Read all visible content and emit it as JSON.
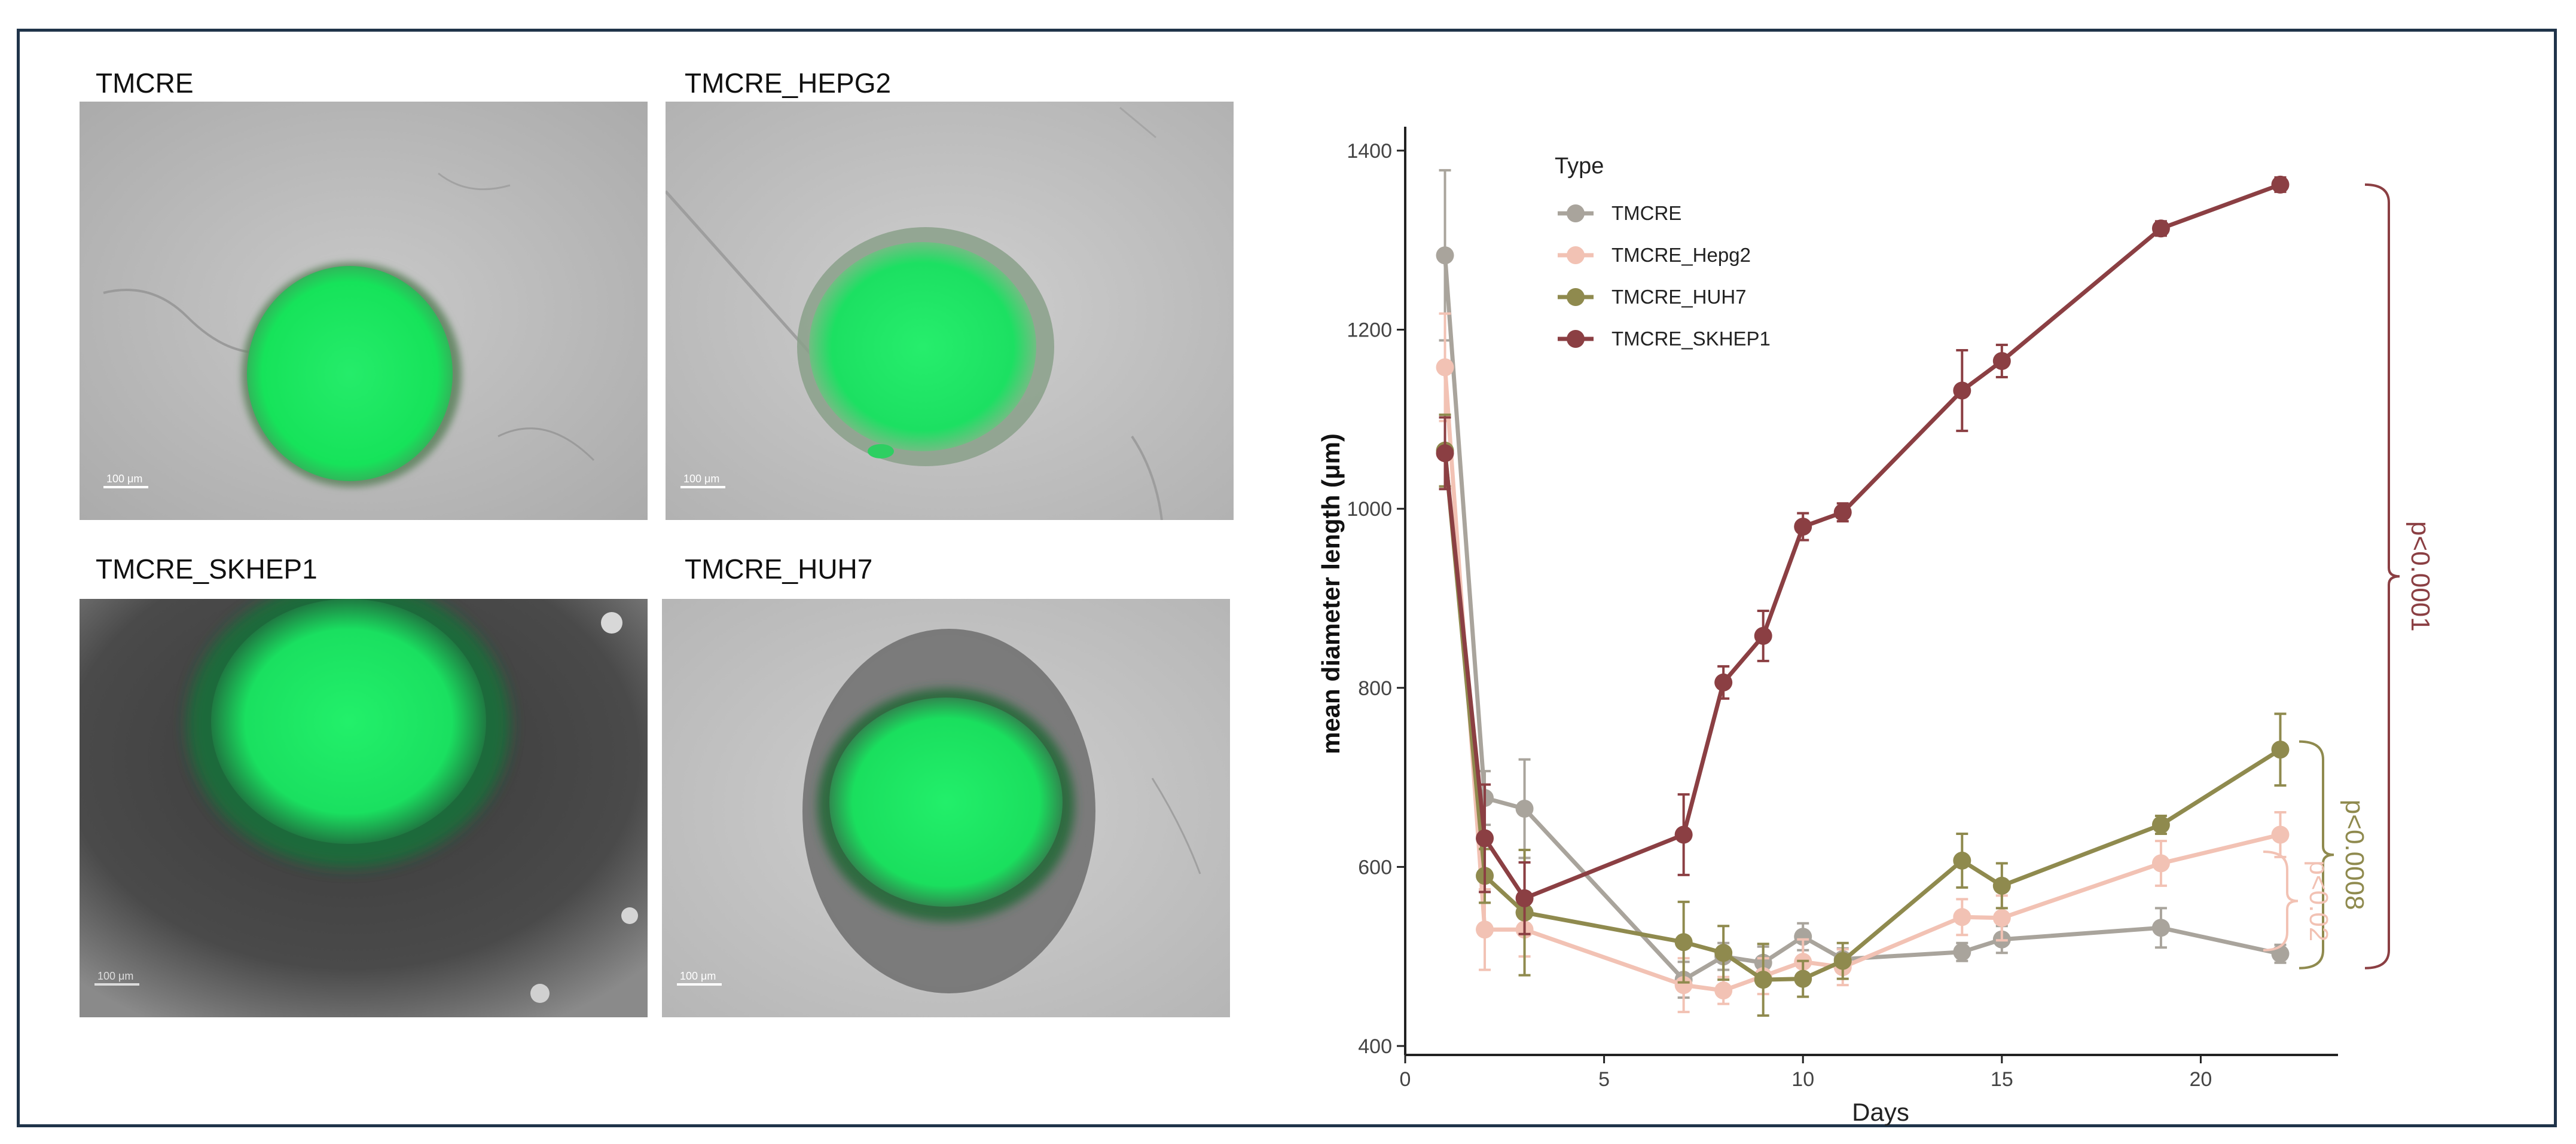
{
  "figure": {
    "panels": [
      {
        "label": "TMCRE",
        "scale_bar": "100 μm"
      },
      {
        "label": "TMCRE_HEPG2",
        "scale_bar": "100 μm"
      },
      {
        "label": "TMCRE_SKHEP1",
        "scale_bar": "100 μm"
      },
      {
        "label": "TMCRE_HUH7",
        "scale_bar": "100 μm"
      }
    ]
  },
  "chart_data": {
    "type": "line",
    "title": "",
    "xlabel": "Days",
    "ylabel": "mean diameter length (μm)",
    "xlim": [
      0,
      23
    ],
    "ylim": [
      390,
      1420
    ],
    "xticks": [
      0,
      5,
      10,
      15,
      20
    ],
    "yticks": [
      400,
      600,
      800,
      1000,
      1200,
      1400
    ],
    "grid": false,
    "legend": {
      "title": "Type",
      "position": "top-left-inside"
    },
    "series": [
      {
        "name": "TMCRE",
        "color": "#a9a49c",
        "x": [
          1,
          2,
          3,
          7,
          8,
          9,
          10,
          11,
          14,
          15,
          19,
          22
        ],
        "y": [
          1283,
          677,
          665,
          474,
          500,
          493,
          522,
          497,
          505,
          519,
          532,
          503
        ],
        "err": [
          95,
          30,
          55,
          20,
          15,
          18,
          15,
          12,
          10,
          15,
          22,
          10
        ]
      },
      {
        "name": "TMCRE_Hepg2",
        "color": "#f2c2b4",
        "x": [
          1,
          2,
          3,
          7,
          8,
          9,
          10,
          11,
          14,
          15,
          19,
          22
        ],
        "y": [
          1158,
          530,
          530,
          468,
          462,
          478,
          494,
          488,
          544,
          543,
          604,
          636
        ],
        "err": [
          60,
          45,
          30,
          30,
          15,
          20,
          25,
          20,
          20,
          25,
          25,
          25
        ]
      },
      {
        "name": "TMCRE_HUH7",
        "color": "#8f8a4e",
        "x": [
          1,
          2,
          3,
          7,
          8,
          9,
          10,
          11,
          14,
          15,
          19,
          22
        ],
        "y": [
          1065,
          590,
          549,
          516,
          504,
          474,
          475,
          495,
          607,
          579,
          647,
          731
        ],
        "err": [
          40,
          30,
          70,
          45,
          30,
          40,
          20,
          20,
          30,
          25,
          10,
          40
        ]
      },
      {
        "name": "TMCRE_SKHEP1",
        "color": "#8b3f43",
        "x": [
          1,
          2,
          3,
          7,
          8,
          9,
          10,
          11,
          14,
          15,
          19,
          22
        ],
        "y": [
          1062,
          632,
          565,
          636,
          806,
          858,
          980,
          996,
          1132,
          1165,
          1313,
          1362
        ],
        "err": [
          40,
          60,
          40,
          45,
          18,
          28,
          15,
          10,
          45,
          18,
          8,
          8
        ]
      }
    ],
    "annotations": [
      {
        "text": "p<0.0001",
        "color": "#8b3f43",
        "y_range": [
          487,
          1362
        ]
      },
      {
        "text": "p<0.0008",
        "color": "#8f8a4e",
        "y_range": [
          487,
          740
        ]
      },
      {
        "text": "p<0.02",
        "color": "#f2c2b4",
        "y_range": [
          507,
          617
        ]
      }
    ]
  }
}
